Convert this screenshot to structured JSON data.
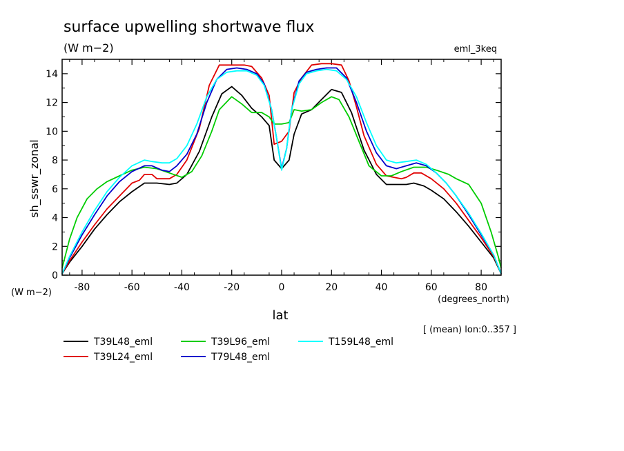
{
  "chart_data": {
    "type": "line",
    "title": "surface upwelling shortwave flux",
    "units": "(W m−2)",
    "experiment": "eml_3keq",
    "ylabel": "sh_sswr_zonal",
    "yunits": "(W m−2)",
    "xlabel": "lat",
    "xunits": "(degrees_north)",
    "note": "[ (mean) lon:0..357 ]",
    "xlim": [
      -88,
      88
    ],
    "ylim": [
      0,
      15
    ],
    "xticks": [
      -80,
      -60,
      -40,
      -20,
      0,
      20,
      40,
      60,
      80
    ],
    "yticks": [
      0,
      2,
      4,
      6,
      8,
      10,
      12,
      14
    ],
    "series": [
      {
        "name": "T39L48_eml",
        "color": "#000000",
        "points": [
          [
            -88,
            0.1
          ],
          [
            -85,
            0.9
          ],
          [
            -80,
            2
          ],
          [
            -75,
            3.2
          ],
          [
            -70,
            4.2
          ],
          [
            -65,
            5.1
          ],
          [
            -60,
            5.8
          ],
          [
            -55,
            6.4
          ],
          [
            -50,
            6.4
          ],
          [
            -45,
            6.3
          ],
          [
            -42,
            6.4
          ],
          [
            -38,
            7
          ],
          [
            -33,
            8.6
          ],
          [
            -28,
            11
          ],
          [
            -24,
            12.6
          ],
          [
            -20,
            13.1
          ],
          [
            -16,
            12.5
          ],
          [
            -12,
            11.6
          ],
          [
            -8,
            11
          ],
          [
            -5,
            10.4
          ],
          [
            -3,
            8
          ],
          [
            0,
            7.4
          ],
          [
            3,
            8
          ],
          [
            5,
            9.8
          ],
          [
            8,
            11.2
          ],
          [
            12,
            11.5
          ],
          [
            16,
            12.2
          ],
          [
            20,
            12.9
          ],
          [
            24,
            12.7
          ],
          [
            28,
            11.3
          ],
          [
            33,
            8.7
          ],
          [
            38,
            7
          ],
          [
            42,
            6.3
          ],
          [
            46,
            6.3
          ],
          [
            50,
            6.3
          ],
          [
            53,
            6.4
          ],
          [
            57,
            6.2
          ],
          [
            60,
            5.9
          ],
          [
            65,
            5.3
          ],
          [
            70,
            4.4
          ],
          [
            75,
            3.4
          ],
          [
            80,
            2.3
          ],
          [
            85,
            1.2
          ],
          [
            88,
            0.1
          ]
        ]
      },
      {
        "name": "T39L24_eml",
        "color": "#e00000",
        "points": [
          [
            -88,
            0.1
          ],
          [
            -85,
            1
          ],
          [
            -80,
            2.3
          ],
          [
            -75,
            3.5
          ],
          [
            -70,
            4.6
          ],
          [
            -65,
            5.5
          ],
          [
            -60,
            6.4
          ],
          [
            -57,
            6.6
          ],
          [
            -55,
            7
          ],
          [
            -52,
            7
          ],
          [
            -50,
            6.7
          ],
          [
            -45,
            6.7
          ],
          [
            -42,
            7
          ],
          [
            -38,
            8
          ],
          [
            -33,
            10.2
          ],
          [
            -29,
            13.2
          ],
          [
            -25,
            14.6
          ],
          [
            -20,
            14.6
          ],
          [
            -15,
            14.6
          ],
          [
            -12,
            14.5
          ],
          [
            -8,
            13.7
          ],
          [
            -5,
            12.5
          ],
          [
            -3,
            9.1
          ],
          [
            0,
            9.3
          ],
          [
            3,
            10
          ],
          [
            5,
            12.7
          ],
          [
            8,
            13.7
          ],
          [
            12,
            14.6
          ],
          [
            16,
            14.7
          ],
          [
            20,
            14.7
          ],
          [
            24,
            14.6
          ],
          [
            27,
            13.5
          ],
          [
            30,
            11.7
          ],
          [
            33,
            9.7
          ],
          [
            38,
            7.7
          ],
          [
            42,
            6.9
          ],
          [
            45,
            6.8
          ],
          [
            48,
            6.7
          ],
          [
            50,
            6.8
          ],
          [
            53,
            7.1
          ],
          [
            56,
            7.1
          ],
          [
            60,
            6.7
          ],
          [
            65,
            6
          ],
          [
            70,
            5
          ],
          [
            75,
            3.8
          ],
          [
            80,
            2.6
          ],
          [
            85,
            1.3
          ],
          [
            88,
            0.1
          ]
        ]
      },
      {
        "name": "T39L96_eml",
        "color": "#00cc00",
        "points": [
          [
            -88,
            0.5
          ],
          [
            -85,
            2.5
          ],
          [
            -82,
            4
          ],
          [
            -78,
            5.3
          ],
          [
            -74,
            6
          ],
          [
            -70,
            6.5
          ],
          [
            -65,
            6.9
          ],
          [
            -60,
            7.3
          ],
          [
            -55,
            7.5
          ],
          [
            -50,
            7.4
          ],
          [
            -45,
            7.1
          ],
          [
            -40,
            6.8
          ],
          [
            -36,
            7.2
          ],
          [
            -32,
            8.3
          ],
          [
            -28,
            10
          ],
          [
            -25,
            11.5
          ],
          [
            -20,
            12.4
          ],
          [
            -16,
            11.9
          ],
          [
            -12,
            11.3
          ],
          [
            -8,
            11.3
          ],
          [
            -5,
            11
          ],
          [
            -3,
            10.5
          ],
          [
            0,
            10.5
          ],
          [
            3,
            10.6
          ],
          [
            5,
            11.5
          ],
          [
            8,
            11.4
          ],
          [
            12,
            11.5
          ],
          [
            16,
            12
          ],
          [
            20,
            12.4
          ],
          [
            23,
            12.2
          ],
          [
            27,
            11
          ],
          [
            31,
            9.3
          ],
          [
            35,
            7.6
          ],
          [
            40,
            6.9
          ],
          [
            44,
            6.9
          ],
          [
            48,
            7.2
          ],
          [
            53,
            7.5
          ],
          [
            58,
            7.5
          ],
          [
            62,
            7.3
          ],
          [
            67,
            7
          ],
          [
            70,
            6.7
          ],
          [
            75,
            6.3
          ],
          [
            80,
            5
          ],
          [
            84,
            3
          ],
          [
            87,
            1.2
          ],
          [
            88,
            0.5
          ]
        ]
      },
      {
        "name": "T79L48_eml",
        "color": "#0000cc",
        "points": [
          [
            -88,
            0.1
          ],
          [
            -85,
            1.2
          ],
          [
            -80,
            2.8
          ],
          [
            -75,
            4.2
          ],
          [
            -70,
            5.5
          ],
          [
            -65,
            6.5
          ],
          [
            -60,
            7.2
          ],
          [
            -55,
            7.6
          ],
          [
            -52,
            7.6
          ],
          [
            -48,
            7.3
          ],
          [
            -45,
            7.2
          ],
          [
            -42,
            7.6
          ],
          [
            -38,
            8.4
          ],
          [
            -34,
            9.8
          ],
          [
            -30,
            12
          ],
          [
            -26,
            13.6
          ],
          [
            -22,
            14.3
          ],
          [
            -18,
            14.4
          ],
          [
            -14,
            14.3
          ],
          [
            -10,
            14
          ],
          [
            -7,
            13.3
          ],
          [
            -4,
            11.5
          ],
          [
            -2,
            9.5
          ],
          [
            0,
            7.4
          ],
          [
            2,
            8.8
          ],
          [
            4,
            11.5
          ],
          [
            7,
            13.5
          ],
          [
            10,
            14.1
          ],
          [
            14,
            14.3
          ],
          [
            18,
            14.4
          ],
          [
            22,
            14.4
          ],
          [
            26,
            13.7
          ],
          [
            30,
            12
          ],
          [
            34,
            10
          ],
          [
            38,
            8.5
          ],
          [
            42,
            7.6
          ],
          [
            46,
            7.4
          ],
          [
            50,
            7.6
          ],
          [
            54,
            7.8
          ],
          [
            58,
            7.6
          ],
          [
            62,
            7.1
          ],
          [
            66,
            6.4
          ],
          [
            70,
            5.5
          ],
          [
            75,
            4.2
          ],
          [
            80,
            2.8
          ],
          [
            85,
            1.4
          ],
          [
            88,
            0.1
          ]
        ]
      },
      {
        "name": "T159L48_eml",
        "color": "#00ffff",
        "points": [
          [
            -88,
            0.1
          ],
          [
            -85,
            1.3
          ],
          [
            -80,
            3
          ],
          [
            -75,
            4.5
          ],
          [
            -70,
            5.8
          ],
          [
            -65,
            6.8
          ],
          [
            -60,
            7.6
          ],
          [
            -55,
            8
          ],
          [
            -52,
            7.9
          ],
          [
            -48,
            7.8
          ],
          [
            -45,
            7.8
          ],
          [
            -42,
            8.1
          ],
          [
            -38,
            9
          ],
          [
            -34,
            10.5
          ],
          [
            -30,
            12.4
          ],
          [
            -26,
            13.6
          ],
          [
            -22,
            14.1
          ],
          [
            -18,
            14.2
          ],
          [
            -14,
            14.2
          ],
          [
            -10,
            13.9
          ],
          [
            -7,
            13.2
          ],
          [
            -4,
            11.5
          ],
          [
            -2,
            9.5
          ],
          [
            0,
            7.3
          ],
          [
            2,
            8.8
          ],
          [
            4,
            11.5
          ],
          [
            7,
            13.3
          ],
          [
            10,
            14
          ],
          [
            14,
            14.2
          ],
          [
            18,
            14.3
          ],
          [
            22,
            14.2
          ],
          [
            26,
            13.6
          ],
          [
            30,
            12.4
          ],
          [
            34,
            10.6
          ],
          [
            38,
            9
          ],
          [
            42,
            8
          ],
          [
            46,
            7.8
          ],
          [
            50,
            7.9
          ],
          [
            54,
            8
          ],
          [
            58,
            7.7
          ],
          [
            62,
            7.1
          ],
          [
            66,
            6.4
          ],
          [
            70,
            5.5
          ],
          [
            75,
            4.3
          ],
          [
            80,
            2.9
          ],
          [
            85,
            1.4
          ],
          [
            88,
            0.1
          ]
        ]
      }
    ]
  }
}
